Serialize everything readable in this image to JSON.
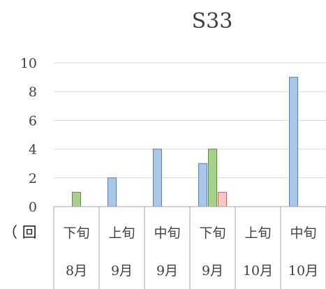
{
  "chart_data": {
    "type": "bar",
    "title": "S33",
    "ylabel_fragment": "（ 回",
    "categories": [
      {
        "period": "下旬",
        "month": "8月"
      },
      {
        "period": "上旬",
        "month": "9月"
      },
      {
        "period": "中旬",
        "month": "9月"
      },
      {
        "period": "下旬",
        "month": "9月"
      },
      {
        "period": "上旬",
        "month": "10月"
      },
      {
        "period": "中旬",
        "month": "10月"
      }
    ],
    "series": [
      {
        "color": "#a9c8e8",
        "stroke": "#5b7fa8",
        "values": [
          0,
          2,
          4,
          3,
          0,
          9
        ]
      },
      {
        "color": "#a8d08d",
        "stroke": "#5e8f3e",
        "values": [
          1,
          0,
          0,
          4,
          0,
          0
        ]
      },
      {
        "color": "#f8c4c4",
        "stroke": "#b86b6b",
        "values": [
          0,
          0,
          0,
          1,
          0,
          0
        ]
      }
    ],
    "ylim": [
      0,
      10
    ],
    "yticks": [
      "0",
      "2",
      "4",
      "6",
      "8",
      "10"
    ],
    "grid": true,
    "legend": "none"
  }
}
